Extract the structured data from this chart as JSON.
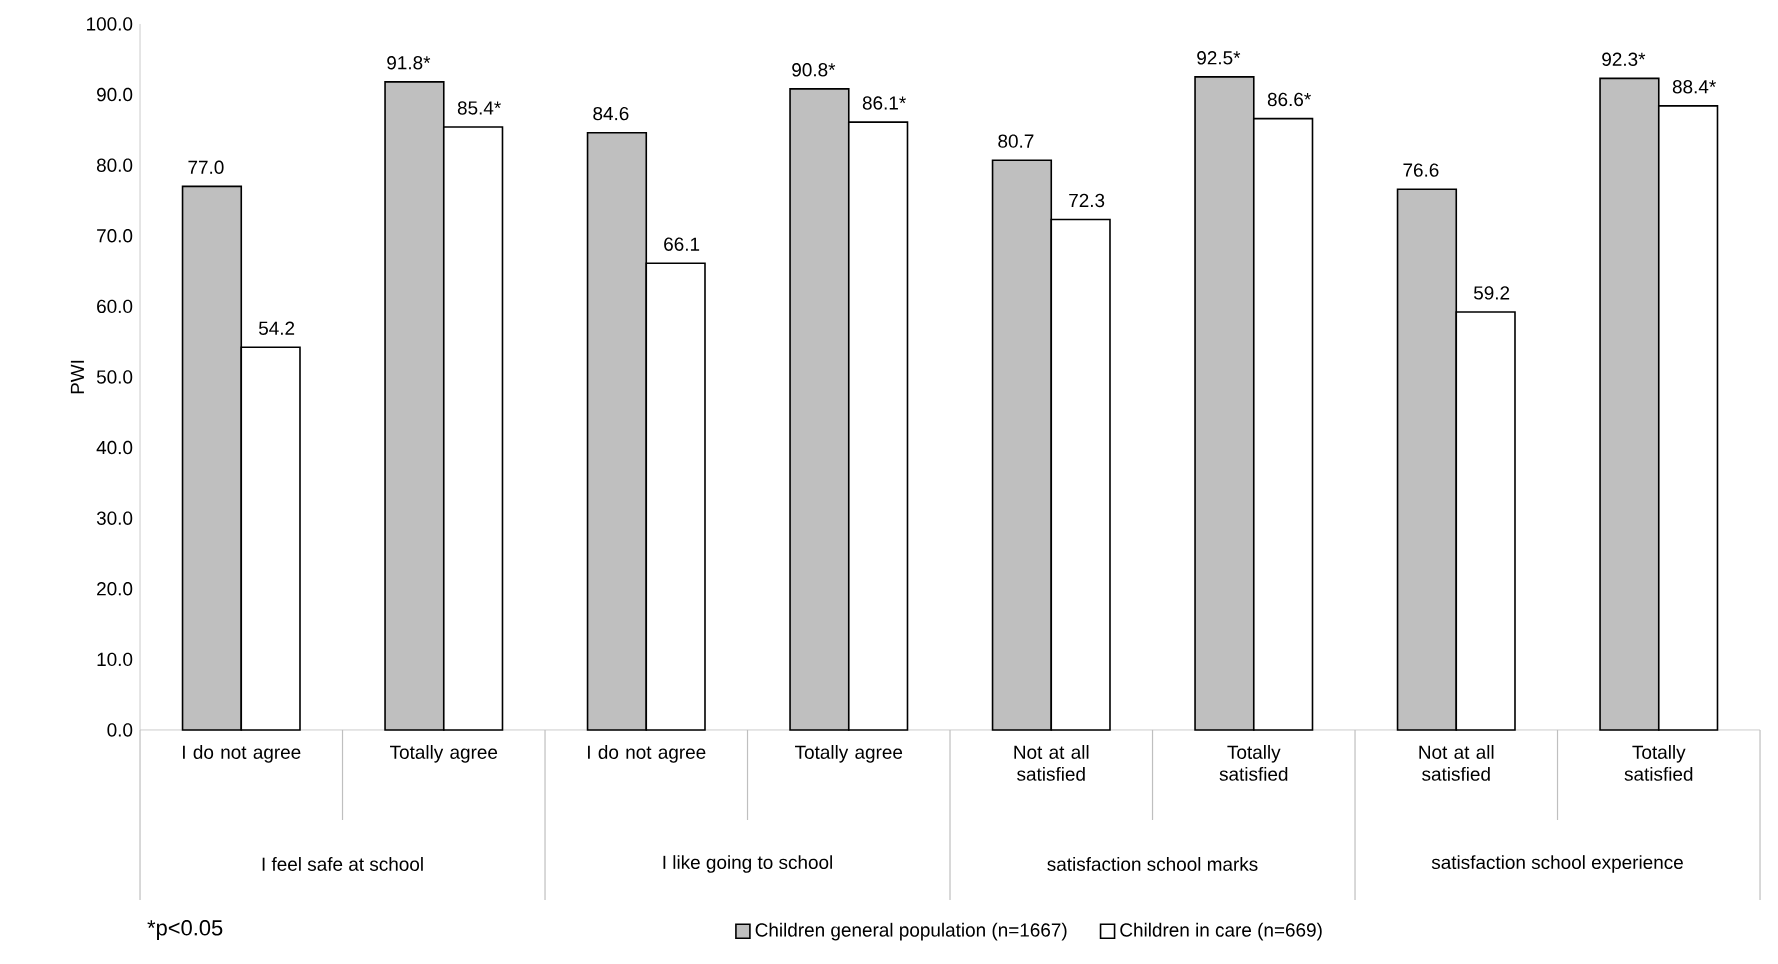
{
  "chart_data": {
    "type": "bar",
    "ylabel": "PWI",
    "categories": [
      "I do not agree",
      "Totally agree",
      "I do not agree",
      "Totally agree",
      "Not at all satisfied",
      "Totally satisfied",
      "Not at all satisfied",
      "Totally satisfied"
    ],
    "series": [
      {
        "name": "Children general population (n=1667)",
        "color": "#bfbfbf",
        "values": [
          77.0,
          91.8,
          84.6,
          90.8,
          80.7,
          92.5,
          76.6,
          92.3
        ],
        "value_labels": [
          "77.0",
          "91.8*",
          "84.6",
          "90.8*",
          "80.7",
          "92.5*",
          "76.6",
          "92.3*"
        ]
      },
      {
        "name": "Children in care (n=669)",
        "color": "#ffffff",
        "values": [
          54.2,
          85.4,
          66.1,
          86.1,
          72.3,
          86.6,
          59.2,
          88.4
        ],
        "value_labels": [
          "54.2",
          "85.4*",
          "66.1",
          "86.1*",
          "72.3",
          "86.6*",
          "59.2",
          "88.4*"
        ]
      }
    ],
    "ylim": [
      0,
      100
    ],
    "yticks": [
      {
        "value": 0,
        "label": "0.0"
      },
      {
        "value": 10,
        "label": "10.0"
      },
      {
        "value": 20,
        "label": "20.0"
      },
      {
        "value": 30,
        "label": "30.0"
      },
      {
        "value": 40,
        "label": "40.0"
      },
      {
        "value": 50,
        "label": "50.0"
      },
      {
        "value": 60,
        "label": "60.0"
      },
      {
        "value": 70,
        "label": "70.0"
      },
      {
        "value": 80,
        "label": "80.0"
      },
      {
        "value": 90,
        "label": "90.0"
      },
      {
        "value": 100,
        "label": "100.0"
      }
    ],
    "annotations": [
      "I feel safe at school",
      "I like going to school",
      "satisfaction school marks",
      "satisfaction school experience",
      "*p<0.05"
    ],
    "legend": "bottom",
    "grid": false
  }
}
